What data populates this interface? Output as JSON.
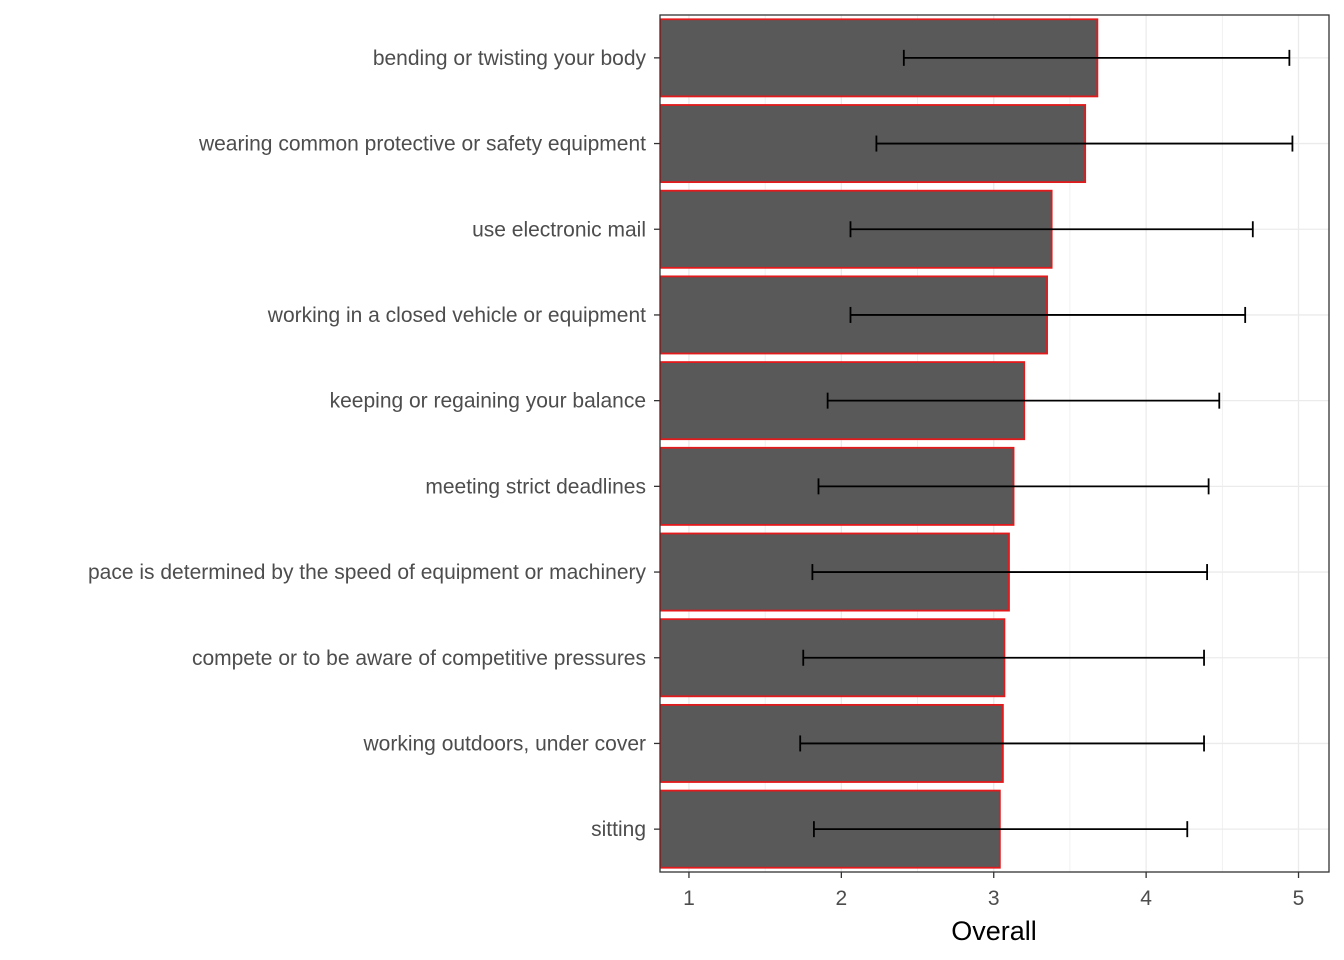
{
  "chart_data": {
    "type": "bar",
    "orientation": "horizontal",
    "title": "",
    "xlabel": "Overall",
    "ylabel": "",
    "xlim": [
      0.81,
      5.2
    ],
    "x_ticks": [
      1,
      2,
      3,
      4,
      5
    ],
    "grid": true,
    "colors": {
      "bar_fill": "#595959",
      "bar_outline": "#e31a1c",
      "error_bar": "#000000",
      "grid": "#ebebeb",
      "panel_border": "#333333"
    },
    "categories": [
      "bending or twisting your body",
      "wearing common protective or safety equipment",
      "use electronic mail",
      "working in a closed vehicle or equipment",
      "keeping or regaining your balance",
      "meeting strict deadlines",
      "pace is determined by the speed of equipment or machinery",
      "compete or to be aware of competitive pressures",
      "working outdoors, under cover",
      "sitting"
    ],
    "values": [
      3.68,
      3.6,
      3.38,
      3.35,
      3.2,
      3.13,
      3.1,
      3.07,
      3.06,
      3.04
    ],
    "error_low": [
      2.41,
      2.23,
      2.06,
      2.06,
      1.91,
      1.85,
      1.81,
      1.75,
      1.73,
      1.82
    ],
    "error_high": [
      4.94,
      4.96,
      4.7,
      4.65,
      4.48,
      4.41,
      4.4,
      4.38,
      4.38,
      4.27
    ]
  }
}
